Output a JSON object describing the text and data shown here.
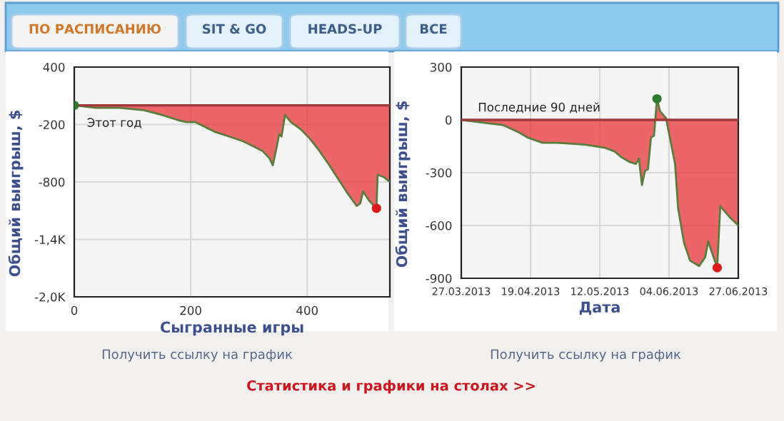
{
  "chart_data": [
    {
      "type": "area",
      "xlabel": "Сыгранные игры",
      "ylabel": "Общий выигрыш, $",
      "xlim": [
        0,
        542
      ],
      "xticks": [
        0,
        200,
        400
      ],
      "ylim": [
        -2000,
        400
      ],
      "yticks": [
        400,
        -200,
        -800,
        {
          "value": -1400,
          "label": "-1,4K"
        },
        {
          "value": -2000,
          "label": "-2,0K"
        }
      ],
      "grid": true,
      "ref_lines": [
        {
          "axis": "y",
          "value": 0,
          "color": "#a03a3a"
        }
      ],
      "annotations": [
        "Этот год",
        "ПО РАСПИСАНИЮ",
        "SIT & GO",
        "HEADS-UP",
        "ВСЕ",
        "Получить ссылку на график",
        "Статистика и графики на столах >>"
      ],
      "series": [
        {
          "color": "#e8353a",
          "x": [
            0,
            37,
            78,
            119,
            151,
            176,
            192,
            208,
            241,
            266,
            290,
            307,
            323,
            335,
            341,
            348,
            352,
            356,
            362,
            372,
            389,
            405,
            421,
            438,
            454,
            470,
            485,
            491,
            496,
            507,
            519,
            521,
            532,
            542
          ],
          "values": [
            0,
            -25,
            -25,
            -50,
            -100,
            -150,
            -175,
            -175,
            -275,
            -325,
            -375,
            -425,
            -475,
            -550,
            -625,
            -425,
            -300,
            -325,
            -100,
            -175,
            -250,
            -350,
            -475,
            -625,
            -775,
            -925,
            -1050,
            -1025,
            -900,
            -1000,
            -1075,
            -725,
            -750,
            -800
          ]
        },
        {
          "type": "scatter",
          "x": [
            0,
            519
          ],
          "values": [
            0,
            -1075
          ],
          "colors": [
            "#2e7d2e",
            "#e01818"
          ]
        }
      ]
    },
    {
      "type": "area",
      "xlabel": "Дата",
      "ylabel": "Общий выигрыш, $",
      "xlim": [
        "2013-03-27",
        "2013-06-27"
      ],
      "xticks": [
        {
          "value": "2013-03-27",
          "label": "27.03.2013"
        },
        {
          "value": "2013-04-19",
          "label": "19.04.2013"
        },
        {
          "value": "2013-05-12",
          "label": "12.05.2013"
        },
        {
          "value": "2013-06-04",
          "label": "04.06.2013"
        },
        {
          "value": "2013-06-27",
          "label": "27.06.2013"
        }
      ],
      "ylim": [
        -900,
        300
      ],
      "yticks": [
        300,
        0,
        -300,
        -600,
        -900
      ],
      "grid": true,
      "ref_lines": [
        {
          "axis": "y",
          "value": 0,
          "color": "#a03a3a"
        }
      ],
      "annotations": [
        "Последние 90 дней",
        "Получить ссылку на график"
      ],
      "series": [
        {
          "color": "#e8353a",
          "x": [
            "2013-03-27",
            "2013-04-10",
            "2013-04-15",
            "2013-04-18",
            "2013-04-23",
            "2013-04-28",
            "2013-05-07",
            "2013-05-14",
            "2013-05-17",
            "2013-05-19",
            "2013-05-22",
            "2013-05-24",
            "2013-05-25",
            "2013-05-26",
            "2013-05-27",
            "2013-05-28",
            "2013-05-29",
            "2013-05-30",
            "2013-05-31",
            "2013-06-01",
            "2013-06-03",
            "2013-06-06",
            "2013-06-07",
            "2013-06-09",
            "2013-06-11",
            "2013-06-14",
            "2013-06-16",
            "2013-06-17",
            "2013-06-20",
            "2013-06-21",
            "2013-06-24",
            "2013-06-27"
          ],
          "values": [
            0,
            -30,
            -70,
            -100,
            -130,
            -130,
            -140,
            -160,
            -180,
            -210,
            -240,
            -250,
            -220,
            -370,
            -290,
            -280,
            -100,
            -90,
            120,
            50,
            10,
            -250,
            -500,
            -700,
            -800,
            -830,
            -780,
            -690,
            -840,
            -490,
            -550,
            -600
          ]
        },
        {
          "type": "scatter",
          "x": [
            "2013-05-31",
            "2013-06-20"
          ],
          "values": [
            120,
            -840
          ],
          "colors": [
            "#2e7d2e",
            "#e01818"
          ]
        }
      ]
    }
  ]
}
